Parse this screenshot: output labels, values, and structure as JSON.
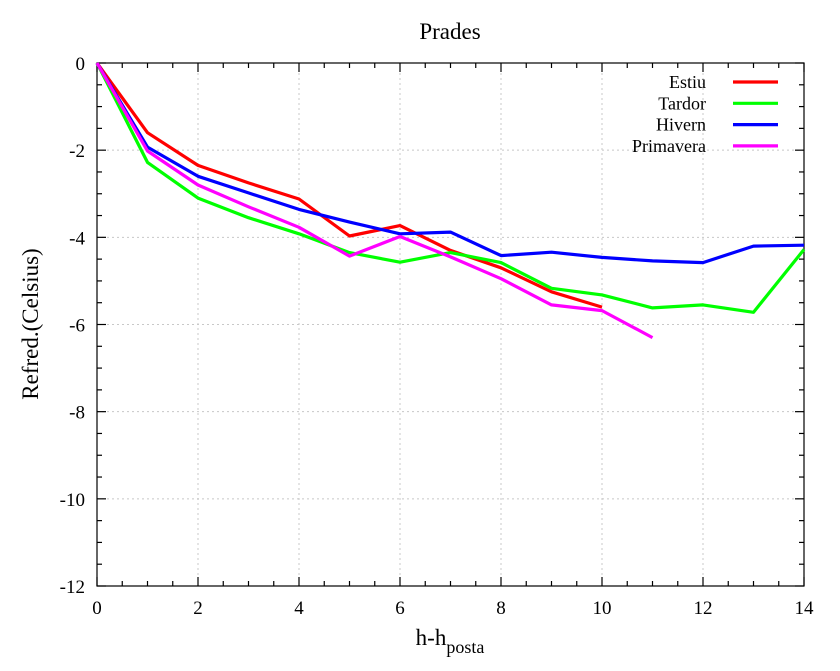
{
  "chart_data": {
    "type": "line",
    "title": "Prades",
    "xlabel_main": "h-h",
    "xlabel_sub": "posta",
    "ylabel": "Refred.(Celsius)",
    "xlim": [
      0,
      14
    ],
    "ylim": [
      -12,
      0
    ],
    "xticks": [
      0,
      2,
      4,
      6,
      8,
      10,
      12,
      14
    ],
    "yticks": [
      0,
      -2,
      -4,
      -6,
      -8,
      -10,
      -12
    ],
    "xtick_labels": [
      "0",
      "2",
      "4",
      "6",
      "8",
      "10",
      "12",
      "14"
    ],
    "ytick_labels": [
      "0",
      "-2",
      "-4",
      "-6",
      "-8",
      "-10",
      "-12"
    ],
    "grid": true,
    "legend_position": "top-right",
    "series": [
      {
        "name": "Estiu",
        "color": "#ff0000",
        "x": [
          0,
          1,
          2,
          3,
          4,
          5,
          6,
          7,
          8,
          9,
          10
        ],
        "y": [
          0,
          -1.6,
          -2.35,
          -2.75,
          -3.12,
          -3.97,
          -3.73,
          -4.3,
          -4.7,
          -5.25,
          -5.6
        ]
      },
      {
        "name": "Tardor",
        "color": "#00ff00",
        "x": [
          0,
          1,
          2,
          3,
          4,
          5,
          6,
          7,
          8,
          9,
          10,
          11,
          12,
          13,
          14
        ],
        "y": [
          0,
          -2.28,
          -3.1,
          -3.55,
          -3.92,
          -4.35,
          -4.57,
          -4.35,
          -4.58,
          -5.17,
          -5.32,
          -5.62,
          -5.55,
          -5.72,
          -4.28
        ]
      },
      {
        "name": "Hivern",
        "color": "#0000ff",
        "x": [
          0,
          1,
          2,
          3,
          4,
          5,
          6,
          7,
          8,
          9,
          10,
          11,
          12,
          13,
          14
        ],
        "y": [
          0,
          -1.93,
          -2.6,
          -2.98,
          -3.36,
          -3.65,
          -3.92,
          -3.88,
          -4.42,
          -4.34,
          -4.46,
          -4.54,
          -4.58,
          -4.2,
          -4.18
        ]
      },
      {
        "name": "Primavera",
        "color": "#ff00ff",
        "x": [
          0,
          1,
          2,
          3,
          4,
          5,
          6,
          7,
          8,
          9,
          10,
          11
        ],
        "y": [
          0,
          -2.02,
          -2.8,
          -3.3,
          -3.77,
          -4.43,
          -3.98,
          -4.45,
          -4.95,
          -5.55,
          -5.68,
          -6.3
        ]
      }
    ]
  }
}
